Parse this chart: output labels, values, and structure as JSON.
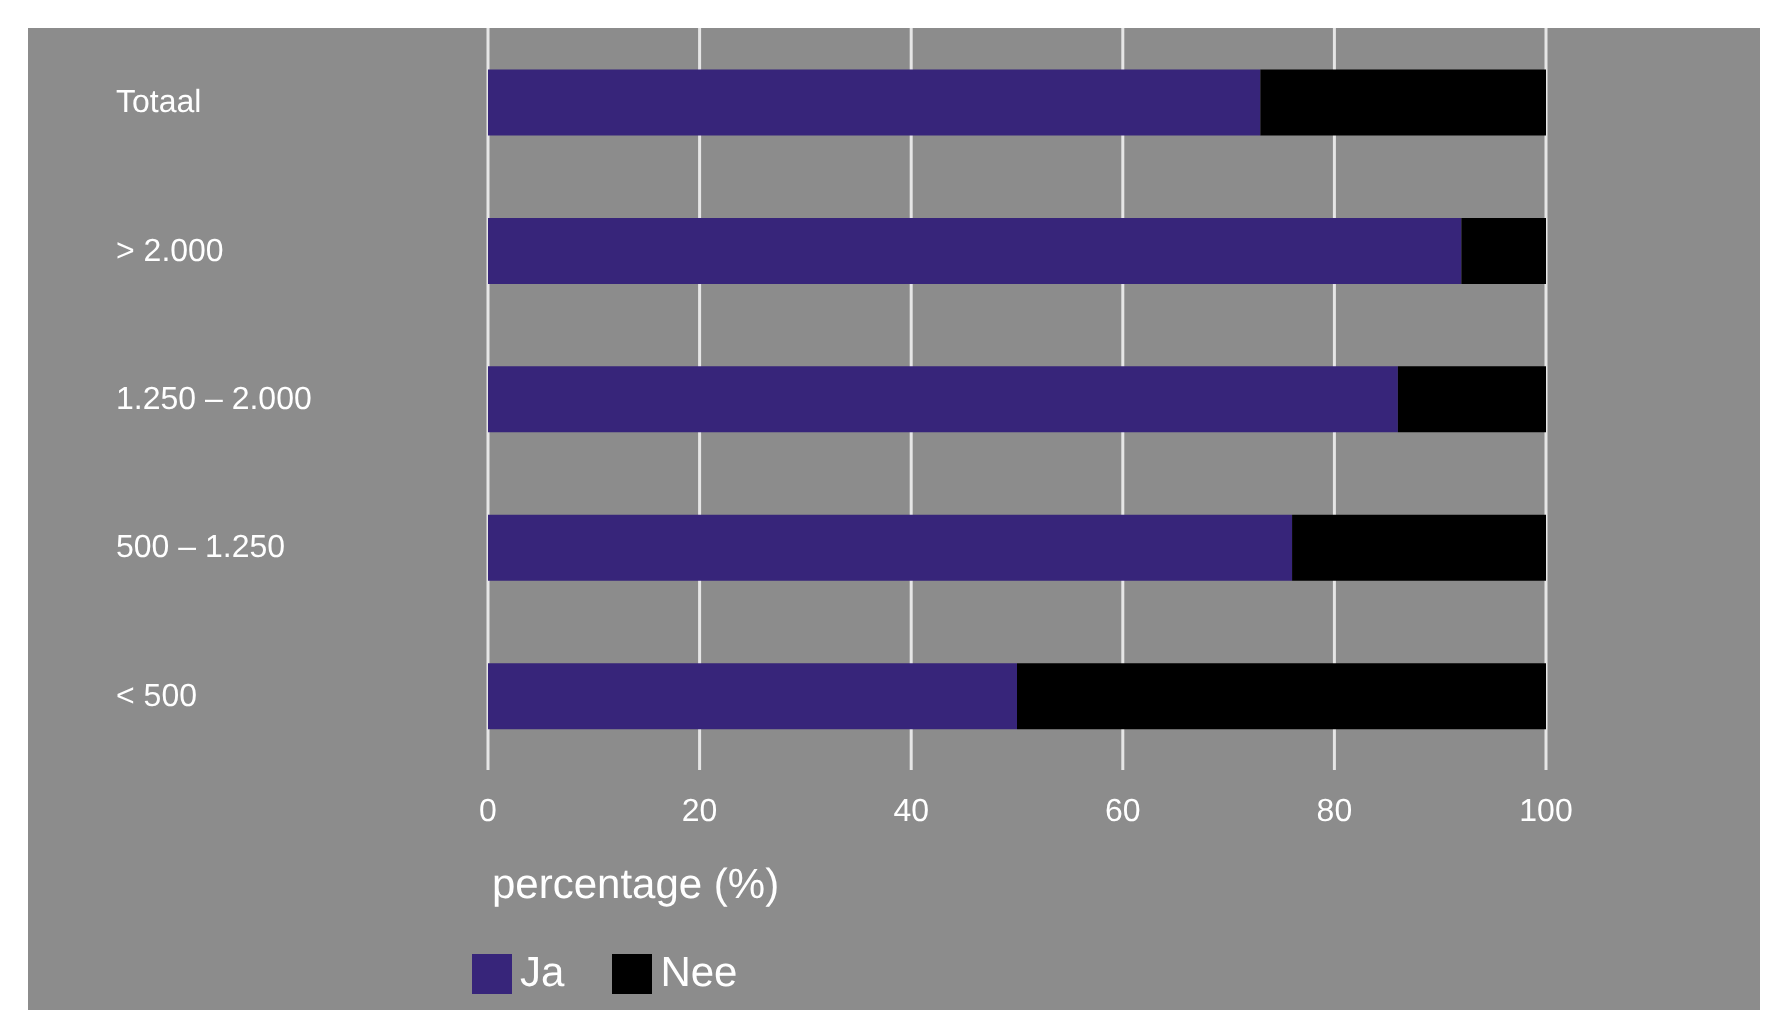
{
  "chart_data": {
    "type": "bar",
    "orientation": "horizontal",
    "stacked": true,
    "categories": [
      "Totaal",
      "> 2.000",
      "1.250 – 2.000",
      "500 – 1.250",
      "< 500"
    ],
    "series": [
      {
        "name": "Ja",
        "color": "#37257a",
        "values": [
          73,
          92,
          86,
          76,
          50
        ]
      },
      {
        "name": "Nee",
        "color": "#000000",
        "values": [
          27,
          8,
          14,
          24,
          50
        ]
      }
    ],
    "xlabel": "percentage (%)",
    "xlim": [
      0,
      100
    ],
    "xticks": [
      0,
      20,
      40,
      60,
      80,
      100
    ],
    "grid": "x",
    "legend": "bottom left"
  }
}
